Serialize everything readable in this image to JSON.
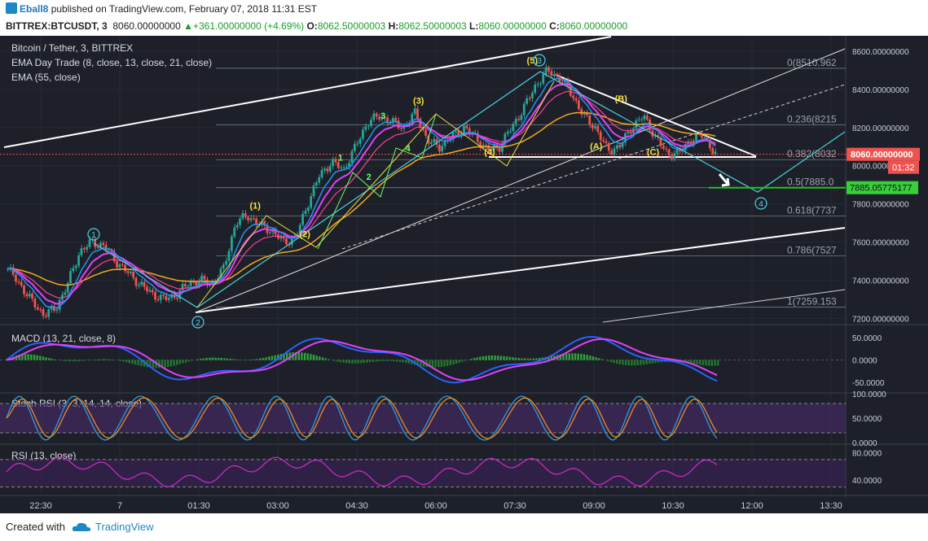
{
  "header": {
    "user": "Eball8",
    "published": "published on TradingView.com, February 07, 2018 11:31 EST",
    "symbol": "BITTREX:BTCUSDT, 3",
    "last": "8060.00000000",
    "change": "+361.00000000 (+4.69%)",
    "o_label": "O:",
    "o": "8062.50000003",
    "h_label": "H:",
    "h": "8062.50000003",
    "l_label": "L:",
    "l": "8060.00000000",
    "c_label": "C:",
    "c": "8060.00000000"
  },
  "legend": {
    "title": "Bitcoin / Tether, 3, BITTREX",
    "ema_day": "EMA Day Trade (8, close, 13, close, 21, close)",
    "ema55": "EMA (55, close)"
  },
  "colors": {
    "bg": "#1d2029",
    "up": "#26a69a",
    "down": "#ef5350",
    "ema55": "#f5a623",
    "ema_fast": "#2196f3",
    "ema_mid": "#e040fb",
    "wave_cyan": "#4dd0e1",
    "wave_yellow": "#f4e23a",
    "wave_green": "#66ff66",
    "fib": "#9aa0aa",
    "last_price": "#ef5350",
    "target": "#27c11f"
  },
  "chart_data": {
    "type": "candlestick",
    "symbol": "BITTREX:BTCUSDT",
    "interval": "3",
    "ylim": [
      7180,
      8660
    ],
    "x_ticks": [
      "22:30",
      "7",
      "01:30",
      "03:00",
      "04:30",
      "06:00",
      "07:30",
      "09:00",
      "10:30",
      "12:00",
      "13:30"
    ],
    "y_ticks": [
      "8600.00000000",
      "8400.00000000",
      "8200.00000000",
      "8000.00000000",
      "7800.00000000",
      "7600.00000000",
      "7400.00000000",
      "7200.00000000"
    ],
    "last_price_label": "8060.00000000",
    "countdown": "01:32",
    "target_label": "7885.05775177",
    "target_value": 7885.05775177,
    "fib_levels": [
      {
        "label": "0(8510.962",
        "value": 8510.962
      },
      {
        "label": "0.236(8215",
        "value": 8215
      },
      {
        "label": "0.382(8032",
        "value": 8032
      },
      {
        "label": "0.5(7885.0",
        "value": 7885.0
      },
      {
        "label": "0.618(7737",
        "value": 7737
      },
      {
        "label": "0.786(7527",
        "value": 7527
      },
      {
        "label": "1(7259.153",
        "value": 7259.153
      }
    ],
    "price_path": [
      7460,
      7380,
      7290,
      7220,
      7250,
      7380,
      7550,
      7600,
      7580,
      7500,
      7440,
      7380,
      7330,
      7300,
      7320,
      7380,
      7400,
      7380,
      7460,
      7700,
      7740,
      7690,
      7660,
      7600,
      7620,
      7800,
      7950,
      8020,
      7980,
      8100,
      8230,
      8260,
      8230,
      8200,
      8280,
      8130,
      8100,
      8150,
      8200,
      8150,
      8080,
      8100,
      8200,
      8300,
      8420,
      8500,
      8460,
      8380,
      8260,
      8200,
      8080,
      8100,
      8200,
      8260,
      8150,
      8060,
      8070,
      8140,
      8160,
      8060
    ],
    "waves": [
      {
        "label": "1",
        "value": 7620,
        "pos": 0.12
      },
      {
        "label": "2",
        "value": 7250,
        "pos": 0.255
      },
      {
        "label": "(1)",
        "value": 7750,
        "pos": 0.35
      },
      {
        "label": "(2)",
        "value": 7600,
        "pos": 0.42
      },
      {
        "label": "1",
        "value": 8000,
        "pos": 0.47
      },
      {
        "label": "2",
        "value": 7900,
        "pos": 0.51
      },
      {
        "label": "3",
        "value": 8220,
        "pos": 0.53
      },
      {
        "label": "4",
        "value": 8050,
        "pos": 0.565
      },
      {
        "label": "(3)",
        "value": 8300,
        "pos": 0.58
      },
      {
        "label": "(4)",
        "value": 8030,
        "pos": 0.68
      },
      {
        "label": "(5)",
        "value": 8510,
        "pos": 0.74
      },
      {
        "label": "3",
        "value": 8520,
        "pos": 0.72
      },
      {
        "label": "(A)",
        "value": 8060,
        "pos": 0.83
      },
      {
        "label": "(B)",
        "value": 8310,
        "pos": 0.865
      },
      {
        "label": "(C)",
        "value": 8030,
        "pos": 0.91
      },
      {
        "label": "4",
        "value": 7885,
        "pos": 1.02
      }
    ],
    "macd": {
      "title": "MACD (13, 21, close, 8)",
      "y_ticks": [
        "50.0000",
        "0.0000",
        "-50.0000"
      ],
      "ylim": [
        -70,
        70
      ]
    },
    "stoch_rsi": {
      "title": "Stoch RSI (3, 3, 14, 14, close)",
      "y_ticks": [
        "100.0000",
        "50.0000",
        "0.0000"
      ],
      "ylim": [
        0,
        100
      ]
    },
    "rsi": {
      "title": "RSI (13, close)",
      "y_ticks": [
        "80.0000",
        "40.0000"
      ],
      "ylim": [
        20,
        90
      ]
    }
  },
  "footer": {
    "created_with": "Created with",
    "brand": "TradingView"
  }
}
